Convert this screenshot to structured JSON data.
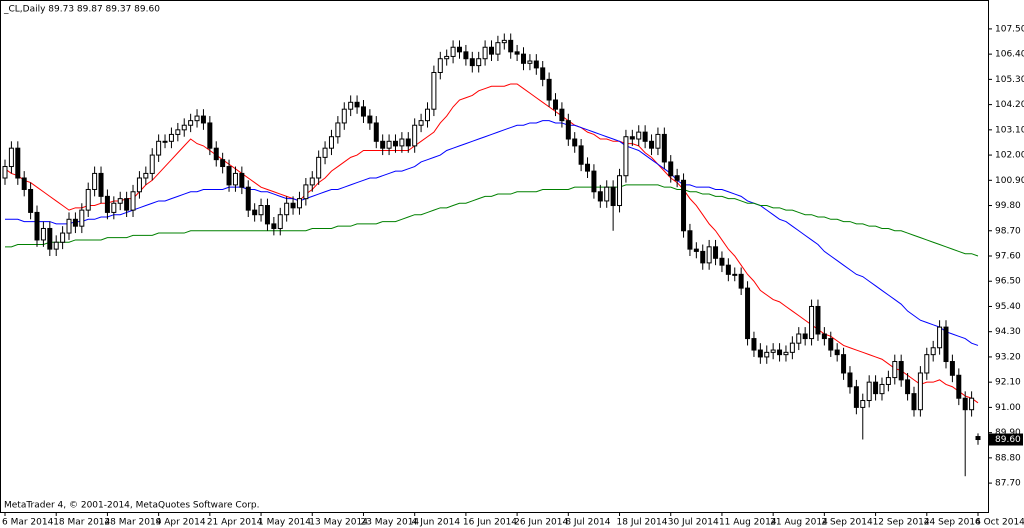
{
  "chart_data": {
    "type": "candlestick",
    "title": "_CL,Daily  89.73 89.87 89.37 89.60",
    "footer": "MetaTrader 4, © 2001-2014, MetaQuotes Software Corp.",
    "up_color": "#ffffff",
    "down_color": "#000000",
    "categories": [
      "6 Mar 2014",
      null,
      null,
      null,
      null,
      null,
      null,
      null,
      "18 Mar 2014",
      null,
      null,
      null,
      null,
      null,
      null,
      null,
      "28 Mar 2014",
      null,
      null,
      null,
      null,
      null,
      null,
      null,
      "9 Apr 2014",
      null,
      null,
      null,
      null,
      null,
      null,
      null,
      "21 Apr 2014",
      null,
      null,
      null,
      null,
      null,
      null,
      null,
      "1 May 2014",
      null,
      null,
      null,
      null,
      null,
      null,
      null,
      "13 May 2014",
      null,
      null,
      null,
      null,
      null,
      null,
      null,
      "23 May 2014",
      null,
      null,
      null,
      null,
      null,
      null,
      null,
      "4 Jun 2014",
      null,
      null,
      null,
      null,
      null,
      null,
      null,
      "16 Jun 2014",
      null,
      null,
      null,
      null,
      null,
      null,
      null,
      "26 Jun 2014",
      null,
      null,
      null,
      null,
      null,
      null,
      null,
      "8 Jul 2014",
      null,
      null,
      null,
      null,
      null,
      null,
      null,
      "18 Jul 2014",
      null,
      null,
      null,
      null,
      null,
      null,
      null,
      "30 Jul 2014",
      null,
      null,
      null,
      null,
      null,
      null,
      null,
      "11 Aug 2014",
      null,
      null,
      null,
      null,
      null,
      null,
      null,
      "21 Aug 2014",
      null,
      null,
      null,
      null,
      null,
      null,
      null,
      "2 Sep 2014",
      null,
      null,
      null,
      null,
      null,
      null,
      null,
      "12 Sep 2014",
      null,
      null,
      null,
      null,
      null,
      null,
      null,
      "24 Sep 2014",
      null,
      null,
      null,
      null,
      null,
      null,
      null,
      "6 Oct 2014"
    ],
    "open": [
      101.0,
      101.5,
      102.3,
      101.0,
      100.5,
      99.5,
      98.3,
      98.8,
      97.9,
      98.2,
      98.6,
      99.2,
      98.9,
      99.6,
      100.5,
      101.2,
      100.2,
      99.5,
      99.9,
      100.1,
      99.6,
      100.4,
      101.0,
      101.2,
      102.0,
      102.6,
      102.6,
      102.9,
      103.1,
      103.3,
      103.5,
      103.7,
      103.4,
      102.3,
      101.8,
      101.5,
      100.7,
      101.2,
      100.6,
      99.6,
      99.4,
      99.8,
      99.0,
      98.8,
      99.4,
      99.9,
      99.7,
      100.1,
      100.7,
      101.0,
      101.9,
      102.3,
      102.8,
      103.4,
      104.0,
      104.3,
      104.1,
      103.7,
      103.4,
      102.6,
      102.3,
      102.6,
      102.4,
      102.7,
      102.4,
      103.3,
      103.5,
      104.0,
      105.6,
      106.2,
      106.3,
      106.7,
      106.5,
      106.2,
      105.9,
      106.2,
      106.7,
      106.4,
      106.9,
      107.0,
      106.5,
      106.4,
      106.0,
      106.1,
      105.8,
      105.3,
      104.4,
      104.0,
      103.5,
      102.7,
      102.4,
      101.6,
      101.3,
      100.4,
      100.0,
      100.6,
      99.8,
      101.1,
      102.8,
      102.7,
      103.0,
      102.6,
      102.3,
      102.9,
      101.7,
      101.1,
      100.9,
      98.7,
      97.9,
      97.8,
      97.3,
      98.0,
      97.5,
      97.2,
      96.8,
      96.8,
      96.2,
      94.0,
      93.5,
      93.2,
      93.4,
      93.5,
      93.3,
      93.4,
      93.8,
      94.2,
      94.0,
      95.4,
      94.2,
      94.0,
      93.5,
      93.3,
      92.5,
      91.9,
      91.0,
      91.3,
      92.1,
      91.6,
      92.0,
      92.3,
      93.0,
      92.2,
      91.6,
      90.9,
      92.5,
      93.3,
      93.6,
      94.5,
      93.0,
      92.4,
      91.4,
      90.9,
      89.73
    ],
    "high": [
      101.8,
      102.6,
      102.6,
      101.3,
      100.8,
      99.8,
      99.1,
      99.1,
      98.5,
      98.9,
      99.5,
      99.5,
      99.9,
      100.8,
      101.5,
      101.5,
      100.5,
      100.2,
      100.4,
      100.4,
      100.7,
      101.3,
      101.5,
      102.3,
      102.9,
      102.9,
      103.2,
      103.4,
      103.6,
      103.8,
      104.0,
      104.0,
      103.7,
      102.6,
      102.1,
      101.8,
      101.5,
      101.5,
      100.9,
      99.9,
      100.1,
      100.1,
      99.3,
      99.7,
      100.2,
      100.2,
      100.4,
      101.0,
      101.3,
      102.2,
      102.6,
      103.1,
      103.7,
      104.3,
      104.6,
      104.6,
      104.4,
      104.0,
      103.7,
      102.9,
      102.9,
      102.9,
      103.0,
      103.0,
      103.6,
      103.8,
      104.3,
      105.9,
      106.5,
      106.6,
      107.0,
      107.0,
      106.8,
      106.5,
      106.5,
      107.0,
      107.0,
      107.2,
      107.3,
      107.3,
      106.8,
      106.7,
      106.4,
      106.4,
      106.1,
      105.6,
      104.7,
      104.3,
      103.8,
      103.0,
      102.7,
      101.9,
      101.6,
      100.7,
      100.9,
      100.9,
      101.4,
      103.1,
      103.1,
      103.3,
      103.3,
      102.9,
      103.2,
      103.2,
      102.0,
      101.4,
      101.2,
      99.0,
      98.2,
      98.1,
      98.3,
      98.3,
      97.8,
      97.5,
      97.1,
      97.1,
      96.5,
      94.3,
      93.8,
      93.7,
      93.8,
      93.8,
      93.7,
      94.1,
      94.5,
      94.5,
      95.7,
      95.7,
      94.5,
      94.3,
      93.8,
      93.6,
      92.8,
      92.2,
      91.6,
      92.4,
      92.4,
      92.3,
      92.6,
      93.3,
      93.3,
      92.5,
      91.9,
      92.8,
      93.6,
      93.9,
      94.8,
      94.8,
      93.3,
      92.7,
      91.7,
      91.7,
      89.87
    ],
    "low": [
      100.7,
      101.2,
      100.7,
      100.2,
      99.2,
      98.0,
      98.0,
      97.6,
      97.6,
      97.9,
      98.3,
      98.6,
      98.6,
      99.3,
      100.2,
      99.9,
      99.2,
      99.2,
      99.6,
      99.3,
      99.3,
      100.1,
      100.7,
      100.9,
      101.7,
      102.3,
      102.3,
      102.6,
      102.8,
      103.0,
      103.2,
      103.1,
      102.0,
      101.5,
      101.2,
      100.4,
      100.4,
      100.3,
      99.3,
      99.1,
      99.1,
      98.7,
      98.5,
      98.5,
      99.1,
      99.4,
      99.4,
      99.8,
      100.4,
      100.7,
      101.6,
      102.0,
      102.5,
      103.1,
      103.7,
      103.8,
      103.4,
      103.1,
      102.3,
      102.0,
      102.0,
      102.1,
      102.1,
      102.1,
      102.1,
      103.0,
      103.2,
      103.7,
      105.3,
      105.9,
      106.0,
      106.2,
      105.9,
      105.6,
      105.6,
      105.9,
      106.1,
      106.1,
      106.6,
      106.2,
      106.1,
      105.7,
      105.7,
      105.5,
      105.0,
      104.1,
      103.7,
      103.2,
      102.4,
      102.1,
      101.3,
      101.0,
      100.1,
      99.7,
      99.7,
      98.7,
      99.5,
      100.8,
      102.4,
      102.4,
      102.3,
      102.0,
      102.0,
      101.4,
      100.8,
      100.6,
      98.4,
      97.6,
      97.5,
      97.0,
      97.0,
      97.2,
      96.9,
      96.5,
      96.5,
      95.9,
      93.7,
      93.2,
      92.9,
      92.9,
      93.1,
      93.0,
      93.0,
      93.1,
      93.5,
      93.7,
      93.7,
      93.9,
      93.7,
      93.2,
      93.0,
      92.2,
      91.6,
      90.7,
      89.6,
      91.0,
      91.3,
      91.3,
      91.7,
      92.0,
      91.9,
      91.3,
      90.6,
      90.6,
      92.2,
      93.0,
      93.3,
      92.7,
      92.1,
      91.1,
      88.0,
      90.6,
      89.37
    ],
    "close": [
      101.5,
      102.3,
      101.0,
      100.5,
      99.5,
      98.3,
      98.8,
      97.9,
      98.2,
      98.6,
      99.2,
      98.9,
      99.6,
      100.5,
      101.2,
      100.2,
      99.5,
      99.9,
      100.1,
      99.6,
      100.4,
      101.0,
      101.2,
      102.0,
      102.6,
      102.6,
      102.9,
      103.1,
      103.3,
      103.5,
      103.7,
      103.4,
      102.3,
      101.8,
      101.5,
      100.7,
      101.2,
      100.6,
      99.6,
      99.4,
      99.8,
      99.0,
      98.8,
      99.4,
      99.9,
      99.7,
      100.1,
      100.7,
      101.0,
      101.9,
      102.3,
      102.8,
      103.4,
      104.0,
      104.3,
      104.1,
      103.7,
      103.4,
      102.6,
      102.3,
      102.6,
      102.4,
      102.7,
      102.4,
      103.3,
      103.5,
      104.0,
      105.6,
      106.2,
      106.3,
      106.7,
      106.5,
      106.2,
      105.9,
      106.2,
      106.7,
      106.4,
      106.9,
      107.0,
      106.5,
      106.4,
      106.0,
      106.1,
      105.8,
      105.3,
      104.4,
      104.0,
      103.5,
      102.7,
      102.4,
      101.6,
      101.3,
      100.4,
      100.0,
      100.6,
      99.8,
      101.1,
      102.8,
      102.7,
      103.0,
      102.6,
      102.3,
      102.9,
      101.7,
      101.1,
      100.9,
      98.7,
      97.9,
      97.8,
      97.3,
      98.0,
      97.5,
      97.2,
      96.8,
      96.8,
      96.2,
      94.0,
      93.5,
      93.2,
      93.4,
      93.5,
      93.3,
      93.4,
      93.8,
      94.2,
      94.0,
      95.4,
      94.2,
      94.0,
      93.5,
      93.3,
      92.5,
      91.9,
      91.0,
      91.3,
      92.1,
      91.6,
      92.0,
      92.3,
      93.0,
      92.2,
      91.6,
      90.9,
      92.5,
      93.3,
      93.6,
      94.5,
      93.0,
      92.4,
      91.4,
      90.9,
      91.4,
      89.6
    ],
    "moving_averages": [
      {
        "color": "#ff0000",
        "values": [
          101.4,
          101.2,
          101.1,
          100.9,
          100.8,
          100.6,
          100.4,
          100.2,
          100.0,
          99.8,
          99.6,
          99.7,
          99.7,
          99.8,
          99.8,
          99.9,
          99.9,
          100.0,
          100.0,
          100.1,
          100.1,
          100.4,
          100.7,
          100.9,
          101.2,
          101.5,
          101.8,
          102.1,
          102.4,
          102.7,
          102.5,
          102.4,
          102.2,
          102.0,
          101.8,
          101.6,
          101.4,
          101.2,
          101.0,
          100.8,
          100.6,
          100.5,
          100.4,
          100.3,
          100.2,
          100.1,
          100.0,
          100.3,
          100.5,
          100.8,
          101.0,
          101.3,
          101.5,
          101.7,
          101.9,
          102.0,
          102.2,
          102.2,
          102.2,
          102.2,
          102.2,
          102.2,
          102.2,
          102.2,
          102.4,
          102.6,
          102.8,
          103.0,
          103.4,
          103.7,
          104.1,
          104.4,
          104.5,
          104.6,
          104.8,
          104.9,
          105.0,
          105.0,
          105.0,
          105.1,
          105.1,
          104.9,
          104.7,
          104.5,
          104.3,
          104.1,
          103.9,
          103.7,
          103.5,
          103.3,
          103.2,
          103.0,
          102.9,
          102.7,
          102.7,
          102.6,
          102.6,
          102.5,
          102.5,
          102.4,
          102.1,
          101.9,
          101.6,
          101.3,
          101.0,
          100.8,
          100.5,
          100.1,
          99.8,
          99.4,
          99.0,
          98.7,
          98.3,
          97.9,
          97.6,
          97.2,
          96.8,
          96.5,
          96.1,
          95.9,
          95.7,
          95.6,
          95.4,
          95.2,
          95.0,
          94.8,
          94.6,
          94.4,
          94.2,
          94.1,
          93.9,
          93.7,
          93.6,
          93.5,
          93.4,
          93.3,
          93.2,
          93.1,
          92.9,
          92.7,
          92.6,
          92.4,
          92.2,
          92.0,
          92.1,
          92.1,
          92.2,
          92.0,
          91.9,
          91.7,
          91.5,
          91.4,
          91.2
        ]
      },
      {
        "color": "#0000ff",
        "values": [
          99.2,
          99.2,
          99.2,
          99.1,
          99.1,
          99.1,
          99.1,
          99.1,
          99.0,
          99.0,
          99.0,
          99.1,
          99.1,
          99.2,
          99.2,
          99.3,
          99.3,
          99.4,
          99.4,
          99.5,
          99.6,
          99.7,
          99.8,
          99.9,
          100.0,
          100.0,
          100.1,
          100.2,
          100.3,
          100.4,
          100.4,
          100.5,
          100.5,
          100.5,
          100.5,
          100.6,
          100.6,
          100.6,
          100.5,
          100.5,
          100.4,
          100.4,
          100.3,
          100.2,
          100.1,
          100.1,
          100.0,
          100.1,
          100.2,
          100.3,
          100.4,
          100.5,
          100.5,
          100.6,
          100.7,
          100.8,
          100.9,
          101.0,
          101.0,
          101.1,
          101.2,
          101.3,
          101.3,
          101.4,
          101.5,
          101.7,
          101.8,
          101.9,
          102.0,
          102.2,
          102.3,
          102.4,
          102.5,
          102.6,
          102.7,
          102.8,
          102.9,
          103.0,
          103.1,
          103.2,
          103.3,
          103.3,
          103.4,
          103.4,
          103.5,
          103.5,
          103.4,
          103.4,
          103.3,
          103.3,
          103.2,
          103.1,
          103.0,
          102.9,
          102.8,
          102.7,
          102.6,
          102.4,
          102.3,
          102.2,
          102.0,
          101.8,
          101.6,
          101.4,
          101.2,
          100.9,
          100.7,
          100.7,
          100.6,
          100.6,
          100.6,
          100.5,
          100.5,
          100.4,
          100.3,
          100.2,
          100.0,
          99.9,
          99.8,
          99.6,
          99.4,
          99.2,
          99.1,
          98.9,
          98.7,
          98.5,
          98.3,
          98.1,
          97.8,
          97.6,
          97.4,
          97.2,
          97.0,
          96.8,
          96.7,
          96.5,
          96.3,
          96.1,
          95.9,
          95.7,
          95.5,
          95.2,
          95.0,
          94.8,
          94.7,
          94.6,
          94.5,
          94.3,
          94.2,
          94.1,
          94.0,
          93.8,
          93.7
        ]
      },
      {
        "color": "#008000",
        "values": [
          98.0,
          98.0,
          98.1,
          98.1,
          98.1,
          98.1,
          98.1,
          98.2,
          98.2,
          98.2,
          98.2,
          98.3,
          98.3,
          98.3,
          98.3,
          98.3,
          98.4,
          98.4,
          98.4,
          98.4,
          98.5,
          98.5,
          98.5,
          98.5,
          98.6,
          98.6,
          98.6,
          98.6,
          98.6,
          98.7,
          98.7,
          98.7,
          98.7,
          98.7,
          98.7,
          98.7,
          98.7,
          98.7,
          98.7,
          98.7,
          98.7,
          98.7,
          98.7,
          98.7,
          98.7,
          98.7,
          98.7,
          98.7,
          98.8,
          98.8,
          98.8,
          98.8,
          98.9,
          98.9,
          98.9,
          99.0,
          99.0,
          99.0,
          99.0,
          99.1,
          99.1,
          99.1,
          99.2,
          99.3,
          99.4,
          99.4,
          99.5,
          99.6,
          99.7,
          99.7,
          99.8,
          99.9,
          99.9,
          100.0,
          100.1,
          100.2,
          100.2,
          100.3,
          100.3,
          100.3,
          100.4,
          100.4,
          100.4,
          100.4,
          100.5,
          100.5,
          100.5,
          100.5,
          100.5,
          100.6,
          100.6,
          100.6,
          100.6,
          100.6,
          100.6,
          100.6,
          100.6,
          100.7,
          100.7,
          100.7,
          100.7,
          100.7,
          100.7,
          100.6,
          100.6,
          100.5,
          100.5,
          100.4,
          100.4,
          100.3,
          100.3,
          100.2,
          100.2,
          100.1,
          100.1,
          100.0,
          99.9,
          99.9,
          99.8,
          99.8,
          99.7,
          99.7,
          99.6,
          99.6,
          99.5,
          99.4,
          99.4,
          99.3,
          99.3,
          99.2,
          99.2,
          99.1,
          99.1,
          99.0,
          99.0,
          98.9,
          98.9,
          98.8,
          98.8,
          98.7,
          98.7,
          98.6,
          98.5,
          98.4,
          98.3,
          98.2,
          98.1,
          98.0,
          97.9,
          97.8,
          97.7,
          97.7,
          97.6
        ]
      }
    ],
    "last_price": {
      "value": 89.6,
      "label": "89.60"
    },
    "ylim": [
      86.44,
      108.76
    ],
    "yticks": [
      {
        "value": 87.7,
        "label": "87.70"
      },
      {
        "value": 88.8,
        "label": "88.80"
      },
      {
        "value": 89.9,
        "label": "89.90"
      },
      {
        "value": 91.0,
        "label": "91.00"
      },
      {
        "value": 92.1,
        "label": "92.10"
      },
      {
        "value": 93.2,
        "label": "93.20"
      },
      {
        "value": 94.3,
        "label": "94.30"
      },
      {
        "value": 95.4,
        "label": "95.40"
      },
      {
        "value": 96.5,
        "label": "96.50"
      },
      {
        "value": 97.6,
        "label": "97.60"
      },
      {
        "value": 98.7,
        "label": "98.70"
      },
      {
        "value": 99.8,
        "label": "99.80"
      },
      {
        "value": 100.9,
        "label": "100.90"
      },
      {
        "value": 102.0,
        "label": "102.00"
      },
      {
        "value": 103.1,
        "label": "103.10"
      },
      {
        "value": 104.2,
        "label": "104.20"
      },
      {
        "value": 105.3,
        "label": "105.30"
      },
      {
        "value": 106.4,
        "label": "106.40"
      },
      {
        "value": 107.5,
        "label": "107.50"
      }
    ],
    "grid": false
  }
}
